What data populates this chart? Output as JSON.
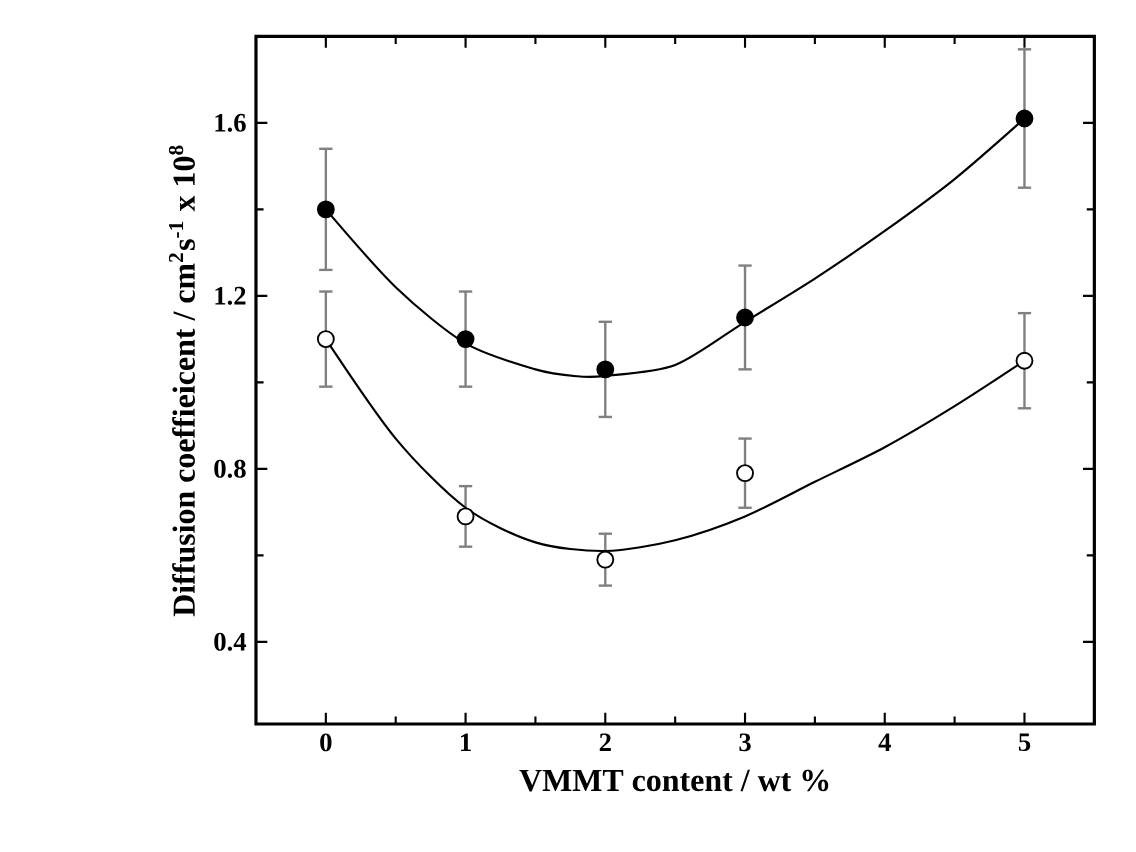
{
  "chart_data": {
    "type": "scatter",
    "xlabel": "VMMT content / wt %",
    "ylabel": "Diffusion coeffieicent / cm$^{2}$s$^{-1}$ x 10$^{8}$",
    "xlim": [
      -0.5,
      5.5
    ],
    "ylim": [
      0.21,
      1.8
    ],
    "xticks": [
      0,
      1,
      2,
      3,
      4,
      5
    ],
    "yticks": [
      0.4,
      0.8,
      1.2,
      1.6
    ],
    "series": [
      {
        "marker": "circle",
        "color": "#000000",
        "x": [
          0,
          1,
          2,
          3,
          5
        ],
        "values": [
          1.4,
          1.1,
          1.03,
          1.15,
          1.61
        ],
        "errors": [
          0.14,
          0.11,
          0.11,
          0.12,
          0.16
        ]
      },
      {
        "marker": "circle",
        "color": "#ffffff",
        "x": [
          0,
          1,
          2,
          3,
          5
        ],
        "values": [
          1.1,
          0.69,
          0.59,
          0.79,
          1.05
        ],
        "errors": [
          0.11,
          0.07,
          0.06,
          0.08,
          0.11
        ]
      },
      {
        "type": "line",
        "marker": "none",
        "color": "#000000",
        "x": [
          0,
          0.5,
          1,
          1.5,
          1.8,
          2,
          2.5,
          3,
          3.5,
          4,
          4.5,
          5
        ],
        "values": [
          1.4,
          1.22,
          1.09,
          1.03,
          1.014,
          1.015,
          1.04,
          1.14,
          1.24,
          1.35,
          1.47,
          1.61
        ]
      },
      {
        "type": "line",
        "marker": "none",
        "color": "#000000",
        "x": [
          0,
          0.5,
          1,
          1.5,
          2,
          2.5,
          3,
          3.5,
          4,
          4.5,
          5
        ],
        "values": [
          1.1,
          0.87,
          0.71,
          0.63,
          0.61,
          0.635,
          0.69,
          0.77,
          0.85,
          0.945,
          1.05
        ]
      }
    ]
  }
}
